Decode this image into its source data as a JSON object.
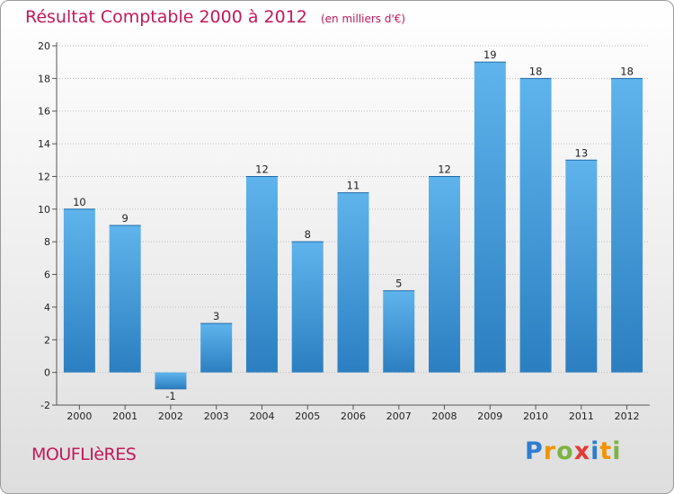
{
  "header": {
    "title": "Résultat Comptable 2000 à 2012",
    "subtitle": "(en milliers d'€)"
  },
  "footer": {
    "town": "MOUFLIèRES",
    "brand_letters": [
      {
        "char": "P",
        "color": "#2e7dd1"
      },
      {
        "char": "r",
        "color": "#f29400"
      },
      {
        "char": "o",
        "color": "#7cb342"
      },
      {
        "char": "x",
        "color": "#e53935"
      },
      {
        "char": "i",
        "color": "#2e7dd1"
      },
      {
        "char": "t",
        "color": "#f29400"
      },
      {
        "char": "i",
        "color": "#7cb342"
      }
    ]
  },
  "colors": {
    "bar_light": "#5fb4ec",
    "bar_dark": "#2b7fc1",
    "title": "#c2185b",
    "grid": "#bdbdbd"
  },
  "chart_data": {
    "type": "bar",
    "title": "Résultat Comptable 2000 à 2012",
    "subtitle": "(en milliers d'€)",
    "categories": [
      "2000",
      "2001",
      "2002",
      "2003",
      "2004",
      "2005",
      "2006",
      "2007",
      "2008",
      "2009",
      "2010",
      "2011",
      "2012"
    ],
    "values": [
      10,
      9,
      -1,
      3,
      12,
      8,
      11,
      5,
      12,
      19,
      18,
      13,
      18
    ],
    "ylim": [
      -2,
      20
    ],
    "yticks": [
      -2,
      0,
      2,
      4,
      6,
      8,
      10,
      12,
      14,
      16,
      18,
      20
    ],
    "grid": true,
    "legend": "none"
  }
}
